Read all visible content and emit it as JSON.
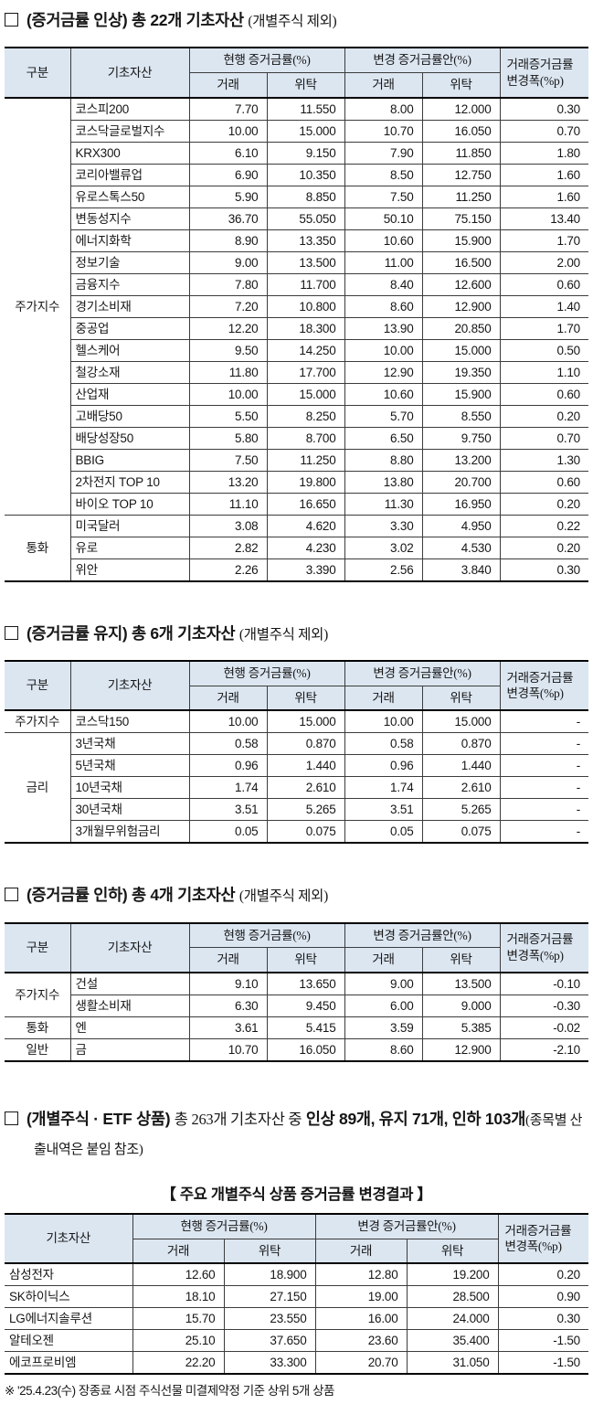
{
  "headers": {
    "group": "구분",
    "asset": "기초자산",
    "current": "현행 증거금률(%)",
    "changed": "변경 증거금률안(%)",
    "trade": "거래",
    "consign": "위탁",
    "change_line1": "거래증거금률",
    "change_line2": "변경폭(%p)"
  },
  "sections": [
    {
      "heading": {
        "bold": "(증거금률 인상) 총 22개 기초자산",
        "note": "(개별주식 제외)"
      },
      "table": {
        "groups": [
          {
            "name": "주가지수",
            "rows": [
              [
                "코스피200",
                "7.70",
                "11.550",
                "8.00",
                "12.000",
                "0.30"
              ],
              [
                "코스닥글로벌지수",
                "10.00",
                "15.000",
                "10.70",
                "16.050",
                "0.70"
              ],
              [
                "KRX300",
                "6.10",
                "9.150",
                "7.90",
                "11.850",
                "1.80"
              ],
              [
                "코리아밸류업",
                "6.90",
                "10.350",
                "8.50",
                "12.750",
                "1.60"
              ],
              [
                "유로스톡스50",
                "5.90",
                "8.850",
                "7.50",
                "11.250",
                "1.60"
              ],
              [
                "변동성지수",
                "36.70",
                "55.050",
                "50.10",
                "75.150",
                "13.40"
              ],
              [
                "에너지화학",
                "8.90",
                "13.350",
                "10.60",
                "15.900",
                "1.70"
              ],
              [
                "정보기술",
                "9.00",
                "13.500",
                "11.00",
                "16.500",
                "2.00"
              ],
              [
                "금융지수",
                "7.80",
                "11.700",
                "8.40",
                "12.600",
                "0.60"
              ],
              [
                "경기소비재",
                "7.20",
                "10.800",
                "8.60",
                "12.900",
                "1.40"
              ],
              [
                "중공업",
                "12.20",
                "18.300",
                "13.90",
                "20.850",
                "1.70"
              ],
              [
                "헬스케어",
                "9.50",
                "14.250",
                "10.00",
                "15.000",
                "0.50"
              ],
              [
                "철강소재",
                "11.80",
                "17.700",
                "12.90",
                "19.350",
                "1.10"
              ],
              [
                "산업재",
                "10.00",
                "15.000",
                "10.60",
                "15.900",
                "0.60"
              ],
              [
                "고배당50",
                "5.50",
                "8.250",
                "5.70",
                "8.550",
                "0.20"
              ],
              [
                "배당성장50",
                "5.80",
                "8.700",
                "6.50",
                "9.750",
                "0.70"
              ],
              [
                "BBIG",
                "7.50",
                "11.250",
                "8.80",
                "13.200",
                "1.30"
              ],
              [
                "2차전지 TOP 10",
                "13.20",
                "19.800",
                "13.80",
                "20.700",
                "0.60"
              ],
              [
                "바이오 TOP 10",
                "11.10",
                "16.650",
                "11.30",
                "16.950",
                "0.20"
              ]
            ]
          },
          {
            "name": "통화",
            "rows": [
              [
                "미국달러",
                "3.08",
                "4.620",
                "3.30",
                "4.950",
                "0.22"
              ],
              [
                "유로",
                "2.82",
                "4.230",
                "3.02",
                "4.530",
                "0.20"
              ],
              [
                "위안",
                "2.26",
                "3.390",
                "2.56",
                "3.840",
                "0.30"
              ]
            ]
          }
        ]
      }
    },
    {
      "heading": {
        "bold": "(증거금률 유지) 총 6개 기초자산",
        "note": "(개별주식 제외)"
      },
      "table": {
        "groups": [
          {
            "name": "주가지수",
            "rows": [
              [
                "코스닥150",
                "10.00",
                "15.000",
                "10.00",
                "15.000",
                "-"
              ]
            ]
          },
          {
            "name": "금리",
            "rows": [
              [
                "3년국채",
                "0.58",
                "0.870",
                "0.58",
                "0.870",
                "-"
              ],
              [
                "5년국채",
                "0.96",
                "1.440",
                "0.96",
                "1.440",
                "-"
              ],
              [
                "10년국채",
                "1.74",
                "2.610",
                "1.74",
                "2.610",
                "-"
              ],
              [
                "30년국채",
                "3.51",
                "5.265",
                "3.51",
                "5.265",
                "-"
              ],
              [
                "3개월무위험금리",
                "0.05",
                "0.075",
                "0.05",
                "0.075",
                "-"
              ]
            ]
          }
        ]
      }
    },
    {
      "heading": {
        "bold": "(증거금률 인하) 총 4개 기초자산",
        "note": "(개별주식 제외)"
      },
      "table": {
        "groups": [
          {
            "name": "주가지수",
            "rows": [
              [
                "건설",
                "9.10",
                "13.650",
                "9.00",
                "13.500",
                "-0.10"
              ],
              [
                "생활소비재",
                "6.30",
                "9.450",
                "6.00",
                "9.000",
                "-0.30"
              ]
            ]
          },
          {
            "name": "통화",
            "rows": [
              [
                "엔",
                "3.61",
                "5.415",
                "3.59",
                "5.385",
                "-0.02"
              ]
            ]
          },
          {
            "name": "일반",
            "rows": [
              [
                "금",
                "10.70",
                "16.050",
                "8.60",
                "12.900",
                "-2.10"
              ]
            ]
          }
        ]
      }
    },
    {
      "heading": {
        "bold1": "(개별주식 · ETF 상품)",
        "mid": "총 263개 기초자산 중",
        "bold2": "인상 89개, 유지 71개, 인하 103개",
        "note": "(종목별 산출내역은 붙임 참조)"
      },
      "caption": "【 주요 개별주식 상품 증거금률 변경결과 】",
      "table": {
        "rows": [
          [
            "삼성전자",
            "12.60",
            "18.900",
            "12.80",
            "19.200",
            "0.20"
          ],
          [
            "SK하이닉스",
            "18.10",
            "27.150",
            "19.00",
            "28.500",
            "0.90"
          ],
          [
            "LG에너지솔루션",
            "15.70",
            "23.550",
            "16.00",
            "24.000",
            "0.30"
          ],
          [
            "알테오젠",
            "25.10",
            "37.650",
            "23.60",
            "35.400",
            "-1.50"
          ],
          [
            "에코프로비엠",
            "22.20",
            "33.300",
            "20.70",
            "31.050",
            "-1.50"
          ]
        ]
      },
      "footnote": "※ '25.4.23(수) 장종료 시점 주식선물 미결제약정 기준 상위 5개 상품"
    }
  ]
}
